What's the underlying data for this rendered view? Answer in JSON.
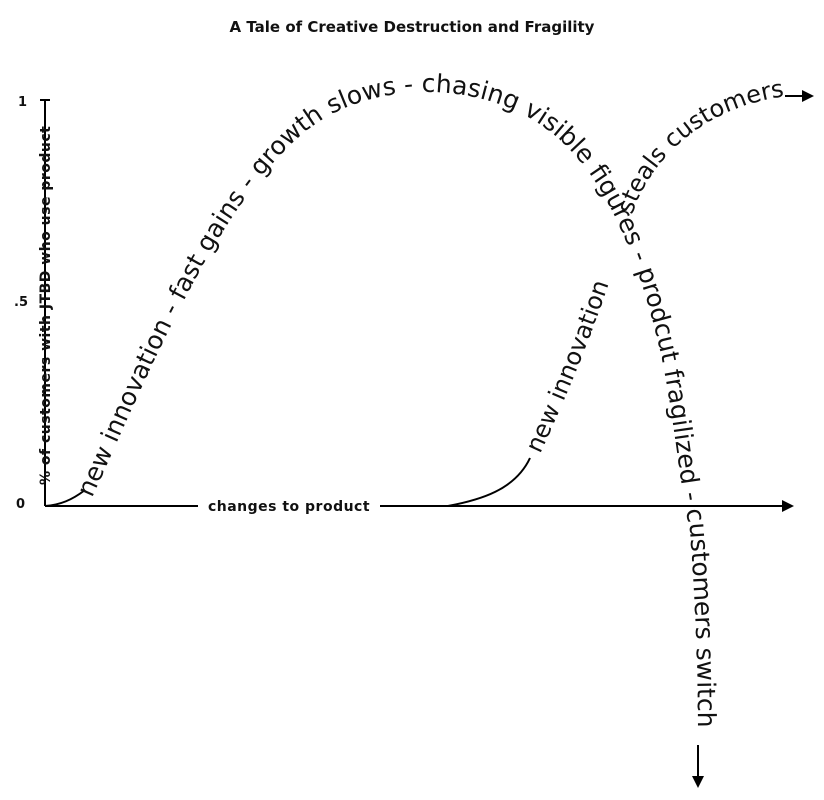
{
  "title": "A Tale of Creative Destruction and Fragility",
  "y_axis": {
    "label": "% of customers with JTBD who use product",
    "ticks": [
      "1",
      ".5",
      "0"
    ]
  },
  "x_axis": {
    "label": "changes to product"
  },
  "curve_1": {
    "text": "new innovation - fast gains - growth slows - chasing visible figures - prodcut fragilized - customers switch"
  },
  "curve_2": {
    "text_rising": "new innovation",
    "text_top": "steals customers"
  }
}
